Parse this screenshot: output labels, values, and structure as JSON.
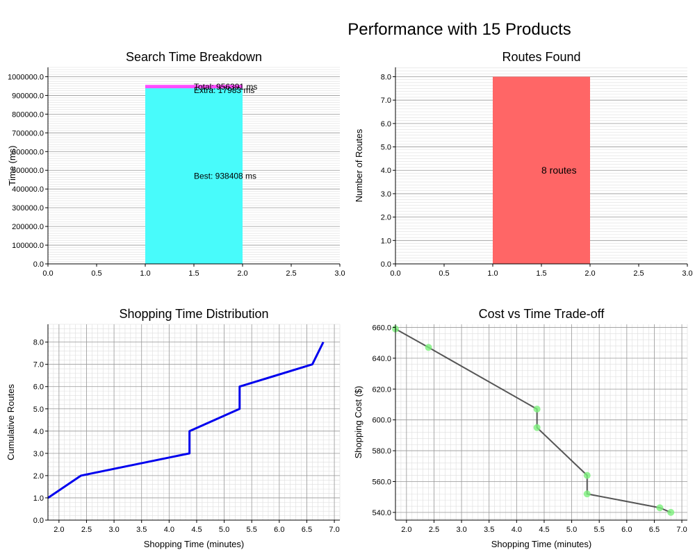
{
  "figure": {
    "suptitle": "Performance with 15 Products"
  },
  "chart_data": [
    {
      "type": "bar",
      "title": "Search Time Breakdown",
      "xlabel": "",
      "ylabel": "Time (ms)",
      "xlim": [
        0,
        3
      ],
      "ylim": [
        0,
        1050000
      ],
      "xticks": [
        "0.0",
        "0.5",
        "1.0",
        "1.5",
        "2.0",
        "2.5",
        "3.0"
      ],
      "yticks": [
        "0.0",
        "100000.0",
        "200000.0",
        "300000.0",
        "400000.0",
        "500000.0",
        "600000.0",
        "700000.0",
        "800000.0",
        "900000.0",
        "1000000.0"
      ],
      "bar": {
        "x_start": 1,
        "x_end": 2
      },
      "series": [
        {
          "name": "Best",
          "value": 938408,
          "color": "#48fbfb"
        },
        {
          "name": "Extra",
          "value": 17983,
          "color": "#ff4dff"
        }
      ],
      "total": 956391,
      "annotations": [
        "Total: 956391 ms",
        "Extra: 17983 ms",
        "Best: 938408 ms"
      ],
      "grid": "horizontal"
    },
    {
      "type": "bar",
      "title": "Routes Found",
      "xlabel": "",
      "ylabel": "Number of Routes",
      "xlim": [
        0,
        3
      ],
      "ylim": [
        0,
        8.4
      ],
      "xticks": [
        "0.0",
        "0.5",
        "1.0",
        "1.5",
        "2.0",
        "2.5",
        "3.0"
      ],
      "yticks": [
        "0.0",
        "1.0",
        "2.0",
        "3.0",
        "4.0",
        "5.0",
        "6.0",
        "7.0",
        "8.0"
      ],
      "bar": {
        "x_start": 1,
        "x_end": 2,
        "value": 8,
        "color": "#ff6666"
      },
      "annotations": [
        "8 routes"
      ],
      "grid": "horizontal"
    },
    {
      "type": "line",
      "title": "Shopping Time Distribution",
      "xlabel": "Shopping Time (minutes)",
      "ylabel": "Cumulative Routes",
      "xlim": [
        1.8,
        7.1
      ],
      "ylim": [
        0,
        8.8
      ],
      "xticks": [
        "2.0",
        "2.5",
        "3.0",
        "3.5",
        "4.0",
        "4.5",
        "5.0",
        "5.5",
        "6.0",
        "6.5",
        "7.0"
      ],
      "yticks": [
        "0.0",
        "1.0",
        "2.0",
        "3.0",
        "4.0",
        "5.0",
        "6.0",
        "7.0",
        "8.0"
      ],
      "x": [
        1.8,
        2.4,
        4.37,
        4.37,
        5.28,
        5.28,
        6.6,
        6.8
      ],
      "y": [
        1,
        2,
        3,
        4,
        5,
        6,
        7,
        8
      ],
      "color": "#0000ee",
      "grid": "both-minor"
    },
    {
      "type": "scatter",
      "title": "Cost vs Time Trade-off",
      "xlabel": "Shopping Time (minutes)",
      "ylabel": "Shopping Cost ($)",
      "xlim": [
        1.8,
        7.1
      ],
      "ylim": [
        535,
        662
      ],
      "xticks": [
        "2.0",
        "2.5",
        "3.0",
        "3.5",
        "4.0",
        "4.5",
        "5.0",
        "5.5",
        "6.0",
        "6.5",
        "7.0"
      ],
      "yticks": [
        "540.0",
        "560.0",
        "580.0",
        "600.0",
        "620.0",
        "640.0",
        "660.0"
      ],
      "x": [
        1.8,
        2.4,
        4.37,
        4.37,
        5.28,
        5.28,
        6.6,
        6.8
      ],
      "y": [
        659,
        647,
        607,
        595,
        564,
        552,
        543,
        540
      ],
      "line_color": "#444444",
      "point_color": "#7cf07c",
      "grid": "both-minor"
    }
  ]
}
